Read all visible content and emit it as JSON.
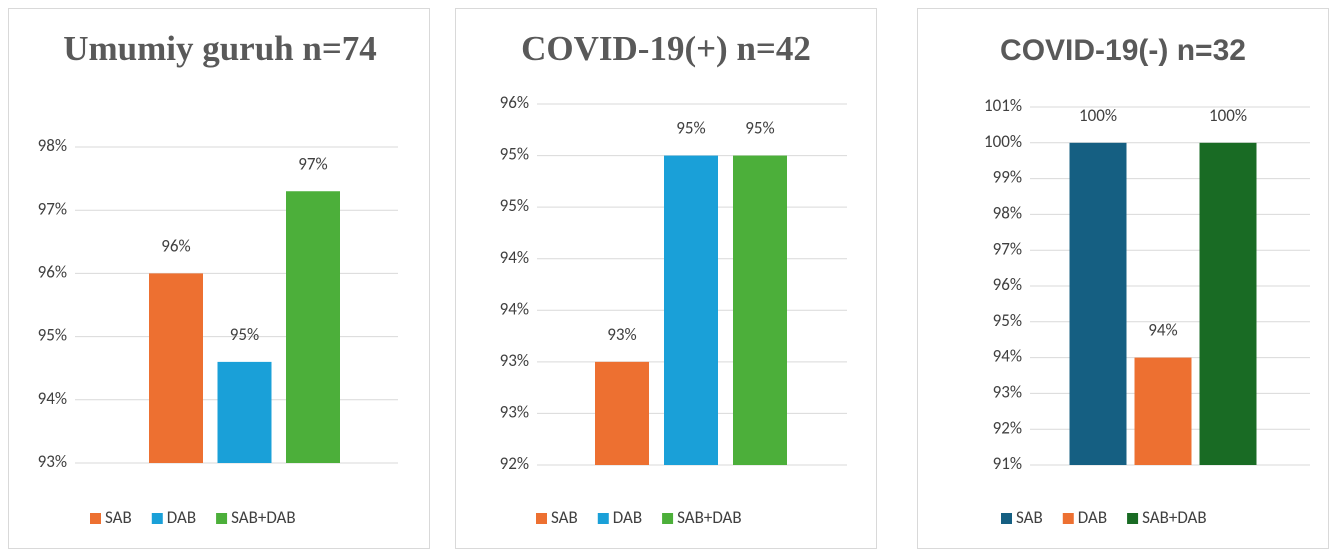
{
  "chart_data": [
    {
      "type": "bar",
      "title": "Umumiy guruh n=74",
      "categories": [
        "SAB",
        "DAB",
        "SAB+DAB"
      ],
      "series": [
        {
          "name": "SAB",
          "color": "#ed7031"
        },
        {
          "name": "DAB",
          "color": "#1aa0d8"
        },
        {
          "name": "SAB+DAB",
          "color": "#4caf3a"
        }
      ],
      "values": [
        96.0,
        94.6,
        97.3
      ],
      "value_labels": [
        "96%",
        "95%",
        "97%"
      ],
      "ylim": [
        93,
        98
      ],
      "yticks": [
        {
          "value": 93,
          "label": "93%"
        },
        {
          "value": 94,
          "label": "94%"
        },
        {
          "value": 95,
          "label": "95%"
        },
        {
          "value": 96,
          "label": "96%"
        },
        {
          "value": 97,
          "label": "97%"
        },
        {
          "value": 98,
          "label": "98%"
        }
      ],
      "grid": true,
      "legend": "bottom"
    },
    {
      "type": "bar",
      "title": "COVID-19(+) n=42",
      "categories": [
        "SAB",
        "DAB",
        "SAB+DAB"
      ],
      "series": [
        {
          "name": "SAB",
          "color": "#ed7031"
        },
        {
          "name": "DAB",
          "color": "#1aa0d8"
        },
        {
          "name": "SAB+DAB",
          "color": "#4caf3a"
        }
      ],
      "values": [
        93.0,
        95.0,
        95.0
      ],
      "value_labels": [
        "93%",
        "95%",
        "95%"
      ],
      "ylim": [
        92,
        95.5
      ],
      "yticks": [
        {
          "value": 92,
          "label": "92%"
        },
        {
          "value": 92.5,
          "label": "93%"
        },
        {
          "value": 93,
          "label": "93%"
        },
        {
          "value": 93.5,
          "label": "94%"
        },
        {
          "value": 94,
          "label": "94%"
        },
        {
          "value": 94.5,
          "label": "95%"
        },
        {
          "value": 95,
          "label": "95%"
        },
        {
          "value": 95.5,
          "label": "96%"
        }
      ],
      "grid": true,
      "legend": "bottom"
    },
    {
      "type": "bar",
      "title": "COVID-19(-) n=32",
      "categories": [
        "SAB",
        "DAB",
        "SAB+DAB"
      ],
      "series": [
        {
          "name": "SAB",
          "color": "#155f82"
        },
        {
          "name": "DAB",
          "color": "#ed7031"
        },
        {
          "name": "SAB+DAB",
          "color": "#196b24"
        }
      ],
      "values": [
        100.0,
        94.0,
        100.0
      ],
      "value_labels": [
        "100%",
        "94%",
        "100%"
      ],
      "ylim": [
        91,
        101
      ],
      "yticks": [
        {
          "value": 91,
          "label": "91%"
        },
        {
          "value": 92,
          "label": "92%"
        },
        {
          "value": 93,
          "label": "93%"
        },
        {
          "value": 94,
          "label": "94%"
        },
        {
          "value": 95,
          "label": "95%"
        },
        {
          "value": 96,
          "label": "96%"
        },
        {
          "value": 97,
          "label": "97%"
        },
        {
          "value": 98,
          "label": "98%"
        },
        {
          "value": 99,
          "label": "99%"
        },
        {
          "value": 100,
          "label": "100%"
        },
        {
          "value": 101,
          "label": "101%"
        }
      ],
      "grid": true,
      "legend": "bottom"
    }
  ]
}
